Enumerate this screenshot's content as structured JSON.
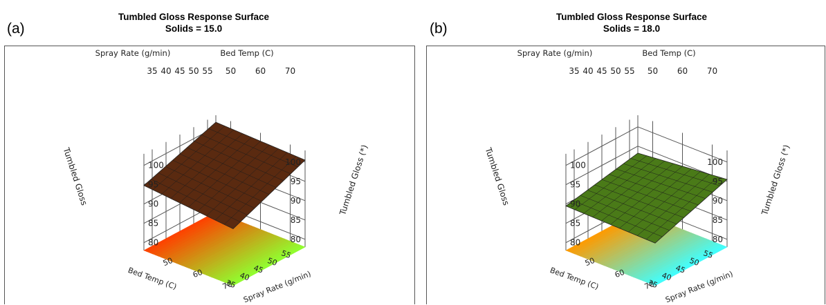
{
  "chart_data": [
    {
      "panel_label": "(a)",
      "type": "surface3d",
      "title": "Tumbled Gloss Response Surface",
      "subtitle": "Solids = 15.0",
      "x_axis": {
        "label": "Spray Rate (g/min)",
        "range": [
          45,
          75
        ],
        "ticks": [
          "50",
          "60",
          "70"
        ]
      },
      "y_axis": {
        "label": "Bed Temp (C)",
        "range": [
          32,
          58
        ],
        "ticks": [
          "55",
          "50",
          "45",
          "40",
          "35"
        ]
      },
      "z_axis": {
        "label": "Tumbled Gloss",
        "label_alt": "Tumbled Gloss (*)",
        "range": [
          78,
          103
        ],
        "ticks": [
          "80",
          "85",
          "90",
          "95",
          "100"
        ]
      },
      "floor_axes": {
        "bed_temp_label": "Bed Temp (C)",
        "bed_temp_ticks": [
          "55",
          "50",
          "45",
          "40",
          "35"
        ],
        "spray_rate_label": "Spray Rate (g/min)",
        "spray_rate_ticks": [
          "50",
          "60",
          "70"
        ]
      },
      "surface_corners": [
        {
          "spray_rate": 45,
          "bed_temp": 58,
          "gloss": 101.2
        },
        {
          "spray_rate": 75,
          "bed_temp": 58,
          "gloss": 100.5
        },
        {
          "spray_rate": 45,
          "bed_temp": 32,
          "gloss": 94.8
        },
        {
          "spray_rate": 75,
          "bed_temp": 32,
          "gloss": 92.7
        }
      ],
      "colors": {
        "floor_low": "#ff4000",
        "floor_high": "#90ff30",
        "surface": "#5a2a10"
      }
    },
    {
      "panel_label": "(b)",
      "type": "surface3d",
      "title": "Tumbled Gloss Response Surface",
      "subtitle": "Solids = 18.0",
      "x_axis": {
        "label": "Spray Rate (g/min)",
        "range": [
          45,
          75
        ],
        "ticks": [
          "50",
          "60",
          "70"
        ]
      },
      "y_axis": {
        "label": "Bed Temp (C)",
        "range": [
          32,
          58
        ],
        "ticks": [
          "55",
          "50",
          "45",
          "40",
          "35"
        ]
      },
      "z_axis": {
        "label": "Tumbled Gloss",
        "label_alt": "Tumbled Gloss (*)",
        "range": [
          78,
          103
        ],
        "ticks": [
          "80",
          "85",
          "90",
          "95",
          "100"
        ]
      },
      "floor_axes": {
        "bed_temp_label": "Bed Temp (C)",
        "bed_temp_ticks": [
          "55",
          "50",
          "45",
          "40",
          "35"
        ],
        "spray_rate_label": "Spray Rate (g/min)",
        "spray_rate_ticks": [
          "50",
          "60",
          "70"
        ]
      },
      "surface_corners": [
        {
          "spray_rate": 45,
          "bed_temp": 58,
          "gloss": 93.2
        },
        {
          "spray_rate": 75,
          "bed_temp": 58,
          "gloss": 95.5
        },
        {
          "spray_rate": 45,
          "bed_temp": 32,
          "gloss": 89.5
        },
        {
          "spray_rate": 75,
          "bed_temp": 32,
          "gloss": 89.0
        }
      ],
      "colors": {
        "floor_low": "#ff9a00",
        "floor_high": "#40ffff",
        "surface": "#4a7a18"
      }
    }
  ]
}
